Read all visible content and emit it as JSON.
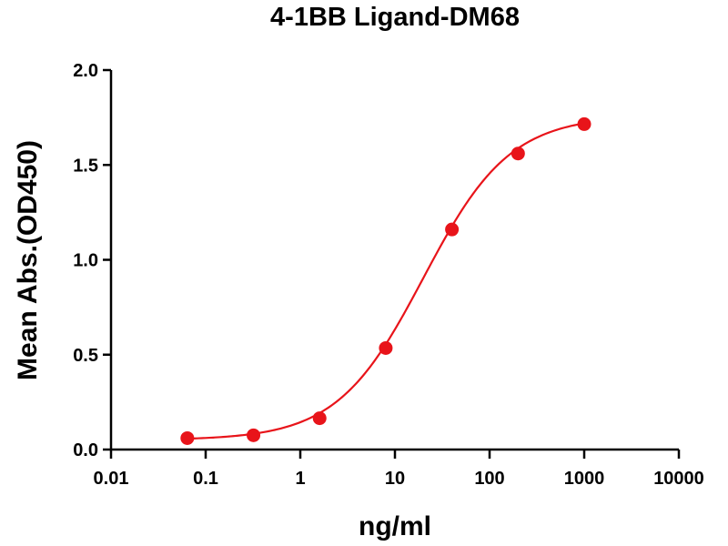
{
  "chart_data": {
    "type": "scatter",
    "title": "4-1BB Ligand-DM68",
    "xlabel": "ng/ml",
    "ylabel": "Mean Abs.(OD450)",
    "x_scale": "log",
    "xlim": [
      0.01,
      10000
    ],
    "ylim": [
      0.0,
      2.0
    ],
    "x_ticks": [
      0.01,
      0.1,
      1,
      10,
      100,
      1000,
      10000
    ],
    "x_tick_labels": [
      "0.01",
      "0.1",
      "1",
      "10",
      "100",
      "1000",
      "10000"
    ],
    "y_ticks": [
      0.0,
      0.5,
      1.0,
      1.5,
      2.0
    ],
    "y_tick_labels": [
      "0.0",
      "0.5",
      "1.0",
      "1.5",
      "2.0"
    ],
    "grid": false,
    "color": "#e8141a",
    "series": [
      {
        "x": [
          0.064,
          0.32,
          1.6,
          8,
          40,
          200,
          1000
        ],
        "y": [
          0.06,
          0.075,
          0.165,
          0.535,
          1.16,
          1.56,
          1.715
        ]
      }
    ],
    "fit": {
      "model": "4PL",
      "bottom": 0.05,
      "top": 1.76,
      "ec50": 20,
      "hill": 0.95
    }
  }
}
